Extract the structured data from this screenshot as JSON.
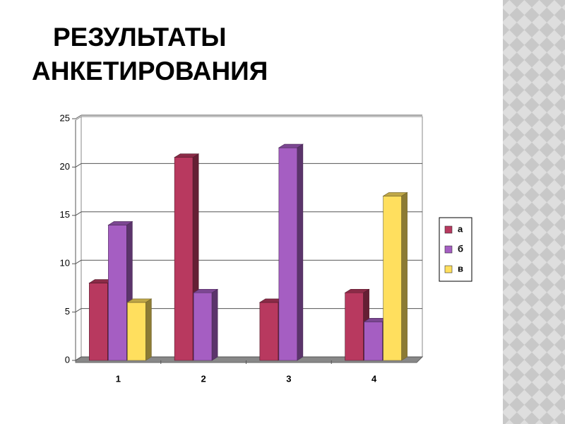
{
  "chart_data": {
    "type": "bar3d",
    "title": [
      "РЕЗУЛЬТАТЫ",
      "АНКЕТИРОВАНИЯ"
    ],
    "categories": [
      "1",
      "2",
      "3",
      "4"
    ],
    "series": [
      {
        "name": "а",
        "color": "#b8395f",
        "values": [
          8,
          21,
          6,
          7
        ]
      },
      {
        "name": "б",
        "color": "#a55ec2",
        "values": [
          14,
          7,
          22,
          4
        ]
      },
      {
        "name": "в",
        "color": "#ffdf5e",
        "values": [
          6,
          null,
          null,
          17
        ]
      }
    ],
    "ylim": [
      0,
      25
    ],
    "yticks": [
      0,
      5,
      10,
      15,
      20,
      25
    ],
    "grid": true,
    "legend": "right"
  }
}
